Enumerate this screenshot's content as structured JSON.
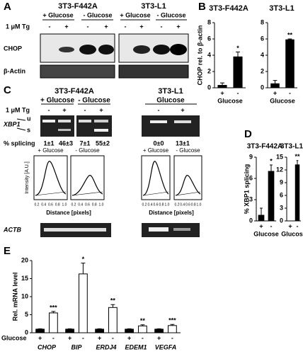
{
  "panel_labels": [
    "A",
    "B",
    "C",
    "D",
    "E"
  ],
  "blots": {
    "A": {
      "cell_lines": [
        "3T3-F442A",
        "3T3-L1"
      ],
      "conditions": [
        "+ Glucose",
        "- Glucose",
        "+ Glucose",
        "- Glucose"
      ],
      "treatment": "1 μM Tg",
      "signs": [
        "-",
        "+",
        "-",
        "+",
        "-",
        "+",
        "-",
        "+"
      ],
      "rows": [
        "CHOP",
        "β-Actin"
      ]
    },
    "C": {
      "cell_lines": [
        "3T3-F442A",
        "3T3-L1"
      ],
      "conditions": [
        "+ Glucose",
        "- Glucose",
        "Glucose"
      ],
      "treatment": "1 μM Tg",
      "signs": [
        "-",
        "+",
        "-",
        "+",
        "-",
        "+"
      ],
      "gene": "XBP1",
      "bands": [
        "u",
        "s"
      ],
      "splicing_label": "% splicing",
      "splicing": [
        "1±1",
        "46±3",
        "7±1",
        "55±2",
        "0±0",
        "13±1"
      ],
      "profile_titles": [
        "+ Glucose",
        "- Glucose",
        "+ Glucose",
        "- Glucose"
      ],
      "profile_ylabel": "Intensity [A.U.]",
      "profile_xlabel": "Distance [pixels]",
      "profile_xticks": [
        "0.2",
        "0.4",
        "0.6",
        "0.8",
        "1.0"
      ],
      "loading": "ACTB"
    }
  },
  "chart_data": [
    {
      "type": "bar",
      "title": "3T3-F442A",
      "ylabel": "CHOP rel. to β-actin",
      "xlabel": "Glucose",
      "categories": [
        "+",
        "-"
      ],
      "values": [
        0.3,
        3.8
      ],
      "errors": [
        0.3,
        0.6
      ],
      "significance": [
        null,
        "*"
      ],
      "color": "#000000",
      "ylim": [
        0,
        8
      ],
      "yticks": [
        0,
        2,
        4,
        6,
        8
      ]
    },
    {
      "type": "bar",
      "title": "3T3-L1",
      "xlabel": "Glucose",
      "categories": [
        "+",
        "-"
      ],
      "values": [
        0.5,
        5.9
      ],
      "errors": [
        0.4,
        0.1
      ],
      "significance": [
        null,
        "**"
      ],
      "color": "#000000",
      "ylim": [
        0,
        8
      ],
      "yticks": [
        0,
        2,
        4,
        6,
        8
      ]
    },
    {
      "type": "bar",
      "title": "3T3-F442A",
      "ylabel": "% XBP1 splicing",
      "xlabel": "Glucose",
      "categories": [
        "+",
        "-"
      ],
      "values": [
        0.8,
        7.0
      ],
      "errors": [
        1.0,
        0.9
      ],
      "significance": [
        null,
        "*"
      ],
      "color": "#000000",
      "ylim": [
        0,
        9
      ],
      "yticks": [
        0,
        3,
        6,
        9
      ]
    },
    {
      "type": "bar",
      "title": "3T3-L1",
      "xlabel": "Glucose",
      "categories": [
        "+",
        "-"
      ],
      "values": [
        0,
        13.2
      ],
      "errors": [
        0,
        1.0
      ],
      "significance": [
        null,
        "**"
      ],
      "color": "#000000",
      "ylim": [
        0,
        15
      ],
      "yticks": [
        0,
        3,
        6,
        9,
        12,
        15
      ]
    },
    {
      "type": "grouped-bar",
      "ylabel": "Rel. mRNA level",
      "xlabel": "Glucose",
      "categories": [
        "CHOP",
        "BIP",
        "ERDJ4",
        "EDEM1",
        "VEGFA"
      ],
      "signs": [
        "+",
        "-"
      ],
      "series": [
        {
          "color": "#000000",
          "values": [
            1,
            1,
            1,
            1,
            1
          ],
          "errors": [
            0.1,
            0.1,
            0.1,
            0.1,
            0.1
          ]
        },
        {
          "color": "#ffffff",
          "values": [
            5.5,
            16.3,
            7.0,
            1.9,
            2.0
          ],
          "errors": [
            0.4,
            3.0,
            0.8,
            0.3,
            0.3
          ],
          "significance": [
            "***",
            "*",
            "**",
            "**",
            "***"
          ]
        }
      ],
      "ylim": [
        0,
        20
      ],
      "yticks": [
        0,
        5,
        10,
        15,
        20
      ]
    }
  ]
}
